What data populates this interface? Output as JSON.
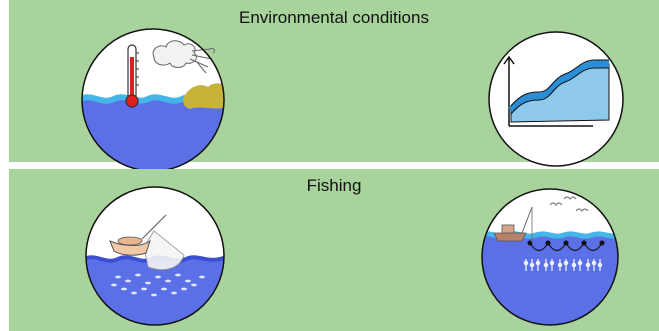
{
  "panels": [
    {
      "title": "Environmental conditions"
    },
    {
      "title": "Fishing"
    }
  ],
  "colors": {
    "panel_bg": "#a9d39d",
    "water": "#5b70e6",
    "water_surface": "#46b6e8",
    "sediment": "#c8b23a",
    "thermometer": "#e02020",
    "chart_fill": "#8ec8ea",
    "chart_line": "#2a8fd6"
  },
  "icons": [
    "thermometer-icon",
    "wind-cloud-icon",
    "trend-chart-icon",
    "fishing-boat-icon",
    "fish-school-icon",
    "seagull-icon",
    "trawl-net-icon"
  ]
}
